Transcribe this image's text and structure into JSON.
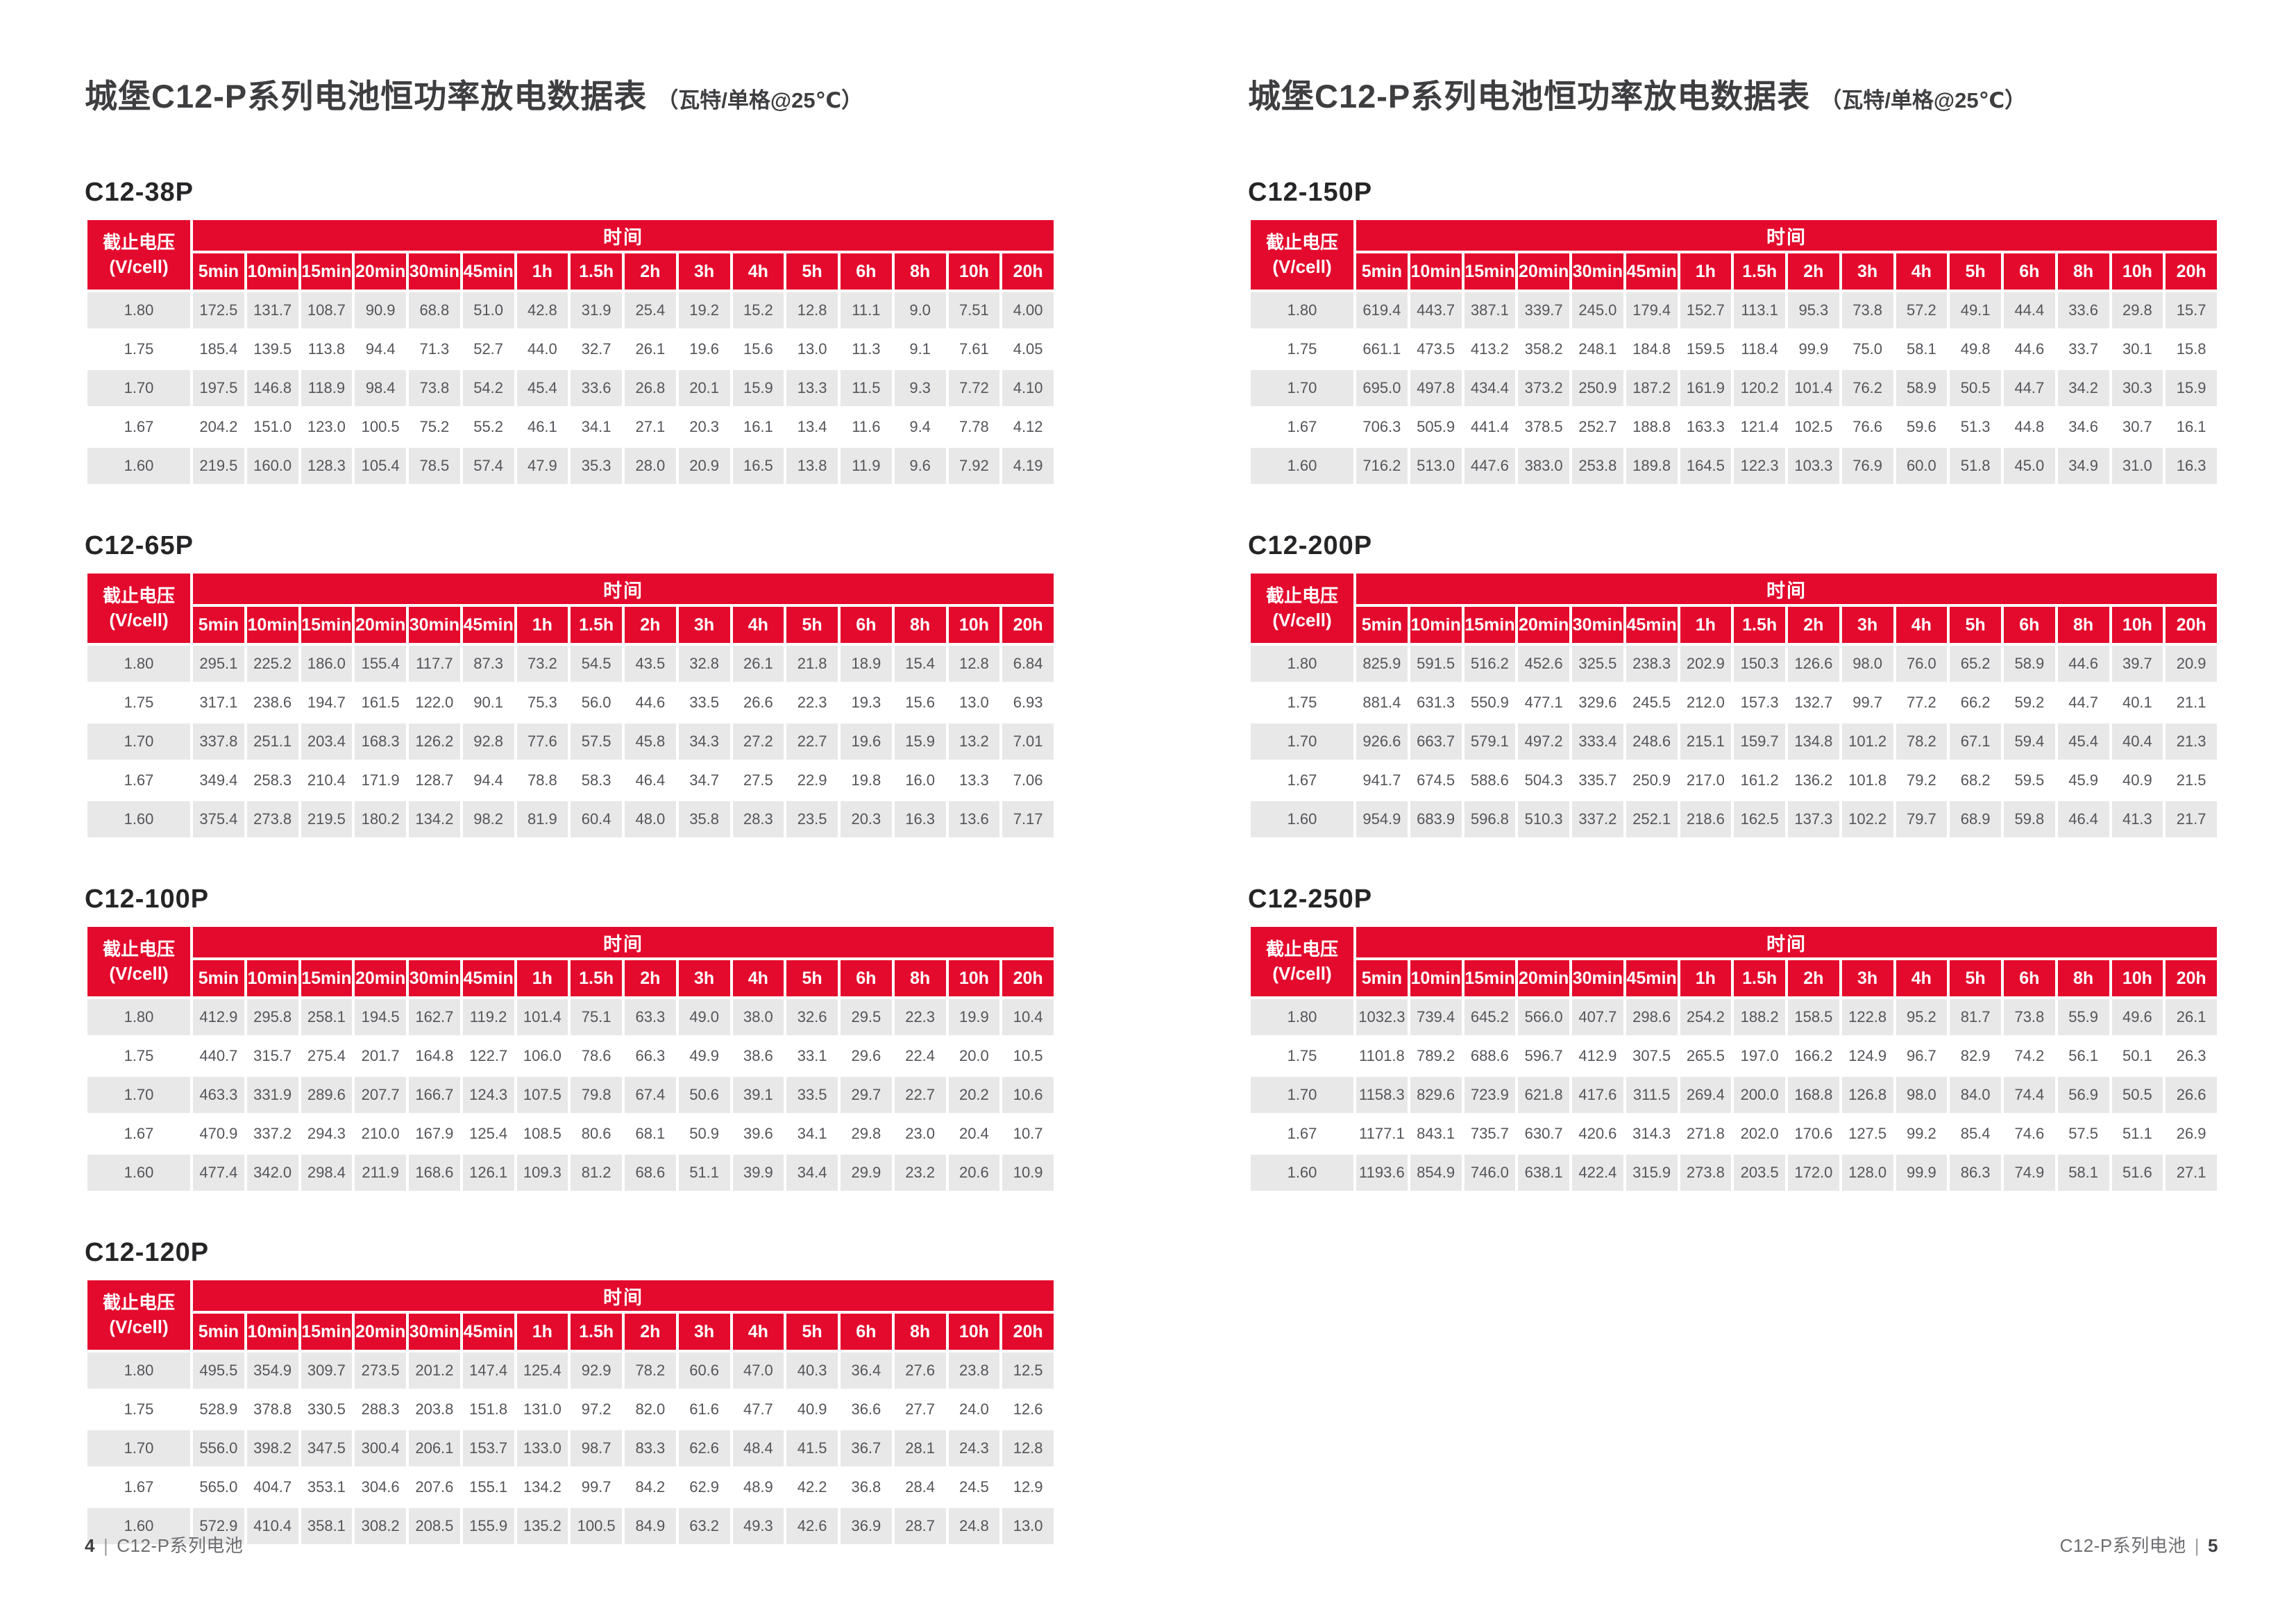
{
  "header_template": {
    "voltage_label": "截止电压",
    "voltage_unit": "(V/cell)",
    "time_label": "时间",
    "time_columns": [
      "5min",
      "10min",
      "15min",
      "20min",
      "30min",
      "45min",
      "1h",
      "1.5h",
      "2h",
      "3h",
      "4h",
      "5h",
      "6h",
      "8h",
      "10h",
      "20h"
    ]
  },
  "colors": {
    "accent_red": "#E40A2D",
    "stripe_gray": "#E8E8E8"
  },
  "pages": [
    {
      "id": "left",
      "title": "城堡C12-P系列电池恒功率放电数据表",
      "title_suffix": "（瓦特/单格@25℃）",
      "footer": {
        "page_number": "4",
        "series_label": "C12-P系列电池"
      },
      "tables": [
        {
          "model": "C12-38P",
          "rows": [
            {
              "voltage": "1.80",
              "values": [
                "172.5",
                "131.7",
                "108.7",
                "90.9",
                "68.8",
                "51.0",
                "42.8",
                "31.9",
                "25.4",
                "19.2",
                "15.2",
                "12.8",
                "11.1",
                "9.0",
                "7.51",
                "4.00"
              ]
            },
            {
              "voltage": "1.75",
              "values": [
                "185.4",
                "139.5",
                "113.8",
                "94.4",
                "71.3",
                "52.7",
                "44.0",
                "32.7",
                "26.1",
                "19.6",
                "15.6",
                "13.0",
                "11.3",
                "9.1",
                "7.61",
                "4.05"
              ]
            },
            {
              "voltage": "1.70",
              "values": [
                "197.5",
                "146.8",
                "118.9",
                "98.4",
                "73.8",
                "54.2",
                "45.4",
                "33.6",
                "26.8",
                "20.1",
                "15.9",
                "13.3",
                "11.5",
                "9.3",
                "7.72",
                "4.10"
              ]
            },
            {
              "voltage": "1.67",
              "values": [
                "204.2",
                "151.0",
                "123.0",
                "100.5",
                "75.2",
                "55.2",
                "46.1",
                "34.1",
                "27.1",
                "20.3",
                "16.1",
                "13.4",
                "11.6",
                "9.4",
                "7.78",
                "4.12"
              ]
            },
            {
              "voltage": "1.60",
              "values": [
                "219.5",
                "160.0",
                "128.3",
                "105.4",
                "78.5",
                "57.4",
                "47.9",
                "35.3",
                "28.0",
                "20.9",
                "16.5",
                "13.8",
                "11.9",
                "9.6",
                "7.92",
                "4.19"
              ]
            }
          ]
        },
        {
          "model": "C12-65P",
          "rows": [
            {
              "voltage": "1.80",
              "values": [
                "295.1",
                "225.2",
                "186.0",
                "155.4",
                "117.7",
                "87.3",
                "73.2",
                "54.5",
                "43.5",
                "32.8",
                "26.1",
                "21.8",
                "18.9",
                "15.4",
                "12.8",
                "6.84"
              ]
            },
            {
              "voltage": "1.75",
              "values": [
                "317.1",
                "238.6",
                "194.7",
                "161.5",
                "122.0",
                "90.1",
                "75.3",
                "56.0",
                "44.6",
                "33.5",
                "26.6",
                "22.3",
                "19.3",
                "15.6",
                "13.0",
                "6.93"
              ]
            },
            {
              "voltage": "1.70",
              "values": [
                "337.8",
                "251.1",
                "203.4",
                "168.3",
                "126.2",
                "92.8",
                "77.6",
                "57.5",
                "45.8",
                "34.3",
                "27.2",
                "22.7",
                "19.6",
                "15.9",
                "13.2",
                "7.01"
              ]
            },
            {
              "voltage": "1.67",
              "values": [
                "349.4",
                "258.3",
                "210.4",
                "171.9",
                "128.7",
                "94.4",
                "78.8",
                "58.3",
                "46.4",
                "34.7",
                "27.5",
                "22.9",
                "19.8",
                "16.0",
                "13.3",
                "7.06"
              ]
            },
            {
              "voltage": "1.60",
              "values": [
                "375.4",
                "273.8",
                "219.5",
                "180.2",
                "134.2",
                "98.2",
                "81.9",
                "60.4",
                "48.0",
                "35.8",
                "28.3",
                "23.5",
                "20.3",
                "16.3",
                "13.6",
                "7.17"
              ]
            }
          ]
        },
        {
          "model": "C12-100P",
          "rows": [
            {
              "voltage": "1.80",
              "values": [
                "412.9",
                "295.8",
                "258.1",
                "194.5",
                "162.7",
                "119.2",
                "101.4",
                "75.1",
                "63.3",
                "49.0",
                "38.0",
                "32.6",
                "29.5",
                "22.3",
                "19.9",
                "10.4"
              ]
            },
            {
              "voltage": "1.75",
              "values": [
                "440.7",
                "315.7",
                "275.4",
                "201.7",
                "164.8",
                "122.7",
                "106.0",
                "78.6",
                "66.3",
                "49.9",
                "38.6",
                "33.1",
                "29.6",
                "22.4",
                "20.0",
                "10.5"
              ]
            },
            {
              "voltage": "1.70",
              "values": [
                "463.3",
                "331.9",
                "289.6",
                "207.7",
                "166.7",
                "124.3",
                "107.5",
                "79.8",
                "67.4",
                "50.6",
                "39.1",
                "33.5",
                "29.7",
                "22.7",
                "20.2",
                "10.6"
              ]
            },
            {
              "voltage": "1.67",
              "values": [
                "470.9",
                "337.2",
                "294.3",
                "210.0",
                "167.9",
                "125.4",
                "108.5",
                "80.6",
                "68.1",
                "50.9",
                "39.6",
                "34.1",
                "29.8",
                "23.0",
                "20.4",
                "10.7"
              ]
            },
            {
              "voltage": "1.60",
              "values": [
                "477.4",
                "342.0",
                "298.4",
                "211.9",
                "168.6",
                "126.1",
                "109.3",
                "81.2",
                "68.6",
                "51.1",
                "39.9",
                "34.4",
                "29.9",
                "23.2",
                "20.6",
                "10.9"
              ]
            }
          ]
        },
        {
          "model": "C12-120P",
          "rows": [
            {
              "voltage": "1.80",
              "values": [
                "495.5",
                "354.9",
                "309.7",
                "273.5",
                "201.2",
                "147.4",
                "125.4",
                "92.9",
                "78.2",
                "60.6",
                "47.0",
                "40.3",
                "36.4",
                "27.6",
                "23.8",
                "12.5"
              ]
            },
            {
              "voltage": "1.75",
              "values": [
                "528.9",
                "378.8",
                "330.5",
                "288.3",
                "203.8",
                "151.8",
                "131.0",
                "97.2",
                "82.0",
                "61.6",
                "47.7",
                "40.9",
                "36.6",
                "27.7",
                "24.0",
                "12.6"
              ]
            },
            {
              "voltage": "1.70",
              "values": [
                "556.0",
                "398.2",
                "347.5",
                "300.4",
                "206.1",
                "153.7",
                "133.0",
                "98.7",
                "83.3",
                "62.6",
                "48.4",
                "41.5",
                "36.7",
                "28.1",
                "24.3",
                "12.8"
              ]
            },
            {
              "voltage": "1.67",
              "values": [
                "565.0",
                "404.7",
                "353.1",
                "304.6",
                "207.6",
                "155.1",
                "134.2",
                "99.7",
                "84.2",
                "62.9",
                "48.9",
                "42.2",
                "36.8",
                "28.4",
                "24.5",
                "12.9"
              ]
            },
            {
              "voltage": "1.60",
              "values": [
                "572.9",
                "410.4",
                "358.1",
                "308.2",
                "208.5",
                "155.9",
                "135.2",
                "100.5",
                "84.9",
                "63.2",
                "49.3",
                "42.6",
                "36.9",
                "28.7",
                "24.8",
                "13.0"
              ]
            }
          ]
        }
      ]
    },
    {
      "id": "right",
      "title": "城堡C12-P系列电池恒功率放电数据表",
      "title_suffix": "（瓦特/单格@25℃）",
      "footer": {
        "page_number": "5",
        "series_label": "C12-P系列电池"
      },
      "tables": [
        {
          "model": "C12-150P",
          "rows": [
            {
              "voltage": "1.80",
              "values": [
                "619.4",
                "443.7",
                "387.1",
                "339.7",
                "245.0",
                "179.4",
                "152.7",
                "113.1",
                "95.3",
                "73.8",
                "57.2",
                "49.1",
                "44.4",
                "33.6",
                "29.8",
                "15.7"
              ]
            },
            {
              "voltage": "1.75",
              "values": [
                "661.1",
                "473.5",
                "413.2",
                "358.2",
                "248.1",
                "184.8",
                "159.5",
                "118.4",
                "99.9",
                "75.0",
                "58.1",
                "49.8",
                "44.6",
                "33.7",
                "30.1",
                "15.8"
              ]
            },
            {
              "voltage": "1.70",
              "values": [
                "695.0",
                "497.8",
                "434.4",
                "373.2",
                "250.9",
                "187.2",
                "161.9",
                "120.2",
                "101.4",
                "76.2",
                "58.9",
                "50.5",
                "44.7",
                "34.2",
                "30.3",
                "15.9"
              ]
            },
            {
              "voltage": "1.67",
              "values": [
                "706.3",
                "505.9",
                "441.4",
                "378.5",
                "252.7",
                "188.8",
                "163.3",
                "121.4",
                "102.5",
                "76.6",
                "59.6",
                "51.3",
                "44.8",
                "34.6",
                "30.7",
                "16.1"
              ]
            },
            {
              "voltage": "1.60",
              "values": [
                "716.2",
                "513.0",
                "447.6",
                "383.0",
                "253.8",
                "189.8",
                "164.5",
                "122.3",
                "103.3",
                "76.9",
                "60.0",
                "51.8",
                "45.0",
                "34.9",
                "31.0",
                "16.3"
              ]
            }
          ]
        },
        {
          "model": "C12-200P",
          "rows": [
            {
              "voltage": "1.80",
              "values": [
                "825.9",
                "591.5",
                "516.2",
                "452.6",
                "325.5",
                "238.3",
                "202.9",
                "150.3",
                "126.6",
                "98.0",
                "76.0",
                "65.2",
                "58.9",
                "44.6",
                "39.7",
                "20.9"
              ]
            },
            {
              "voltage": "1.75",
              "values": [
                "881.4",
                "631.3",
                "550.9",
                "477.1",
                "329.6",
                "245.5",
                "212.0",
                "157.3",
                "132.7",
                "99.7",
                "77.2",
                "66.2",
                "59.2",
                "44.7",
                "40.1",
                "21.1"
              ]
            },
            {
              "voltage": "1.70",
              "values": [
                "926.6",
                "663.7",
                "579.1",
                "497.2",
                "333.4",
                "248.6",
                "215.1",
                "159.7",
                "134.8",
                "101.2",
                "78.2",
                "67.1",
                "59.4",
                "45.4",
                "40.4",
                "21.3"
              ]
            },
            {
              "voltage": "1.67",
              "values": [
                "941.7",
                "674.5",
                "588.6",
                "504.3",
                "335.7",
                "250.9",
                "217.0",
                "161.2",
                "136.2",
                "101.8",
                "79.2",
                "68.2",
                "59.5",
                "45.9",
                "40.9",
                "21.5"
              ]
            },
            {
              "voltage": "1.60",
              "values": [
                "954.9",
                "683.9",
                "596.8",
                "510.3",
                "337.2",
                "252.1",
                "218.6",
                "162.5",
                "137.3",
                "102.2",
                "79.7",
                "68.9",
                "59.8",
                "46.4",
                "41.3",
                "21.7"
              ]
            }
          ]
        },
        {
          "model": "C12-250P",
          "rows": [
            {
              "voltage": "1.80",
              "values": [
                "1032.3",
                "739.4",
                "645.2",
                "566.0",
                "407.7",
                "298.6",
                "254.2",
                "188.2",
                "158.5",
                "122.8",
                "95.2",
                "81.7",
                "73.8",
                "55.9",
                "49.6",
                "26.1"
              ]
            },
            {
              "voltage": "1.75",
              "values": [
                "1101.8",
                "789.2",
                "688.6",
                "596.7",
                "412.9",
                "307.5",
                "265.5",
                "197.0",
                "166.2",
                "124.9",
                "96.7",
                "82.9",
                "74.2",
                "56.1",
                "50.1",
                "26.3"
              ]
            },
            {
              "voltage": "1.70",
              "values": [
                "1158.3",
                "829.6",
                "723.9",
                "621.8",
                "417.6",
                "311.5",
                "269.4",
                "200.0",
                "168.8",
                "126.8",
                "98.0",
                "84.0",
                "74.4",
                "56.9",
                "50.5",
                "26.6"
              ]
            },
            {
              "voltage": "1.67",
              "values": [
                "1177.1",
                "843.1",
                "735.7",
                "630.7",
                "420.6",
                "314.3",
                "271.8",
                "202.0",
                "170.6",
                "127.5",
                "99.2",
                "85.4",
                "74.6",
                "57.5",
                "51.1",
                "26.9"
              ]
            },
            {
              "voltage": "1.60",
              "values": [
                "1193.6",
                "854.9",
                "746.0",
                "638.1",
                "422.4",
                "315.9",
                "273.8",
                "203.5",
                "172.0",
                "128.0",
                "99.9",
                "86.3",
                "74.9",
                "58.1",
                "51.6",
                "27.1"
              ]
            }
          ]
        }
      ]
    }
  ]
}
